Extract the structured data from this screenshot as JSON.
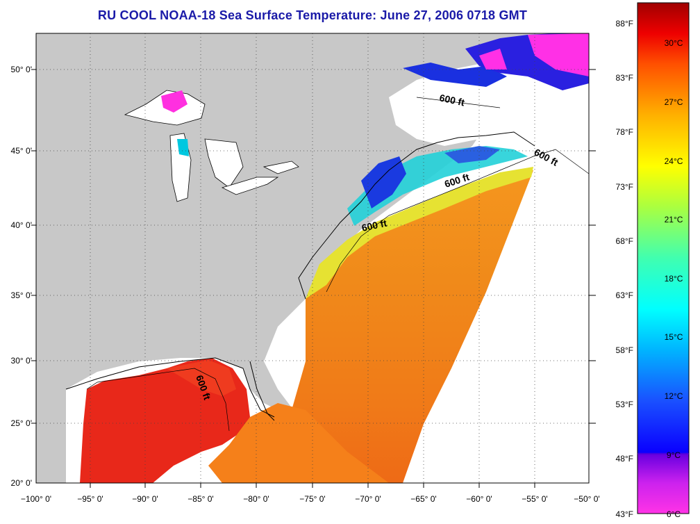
{
  "title": "RU COOL  NOAA-18  Sea Surface Temperature:  June 27, 2006 0718 GMT",
  "lon_labels": [
    "−100° 0'",
    "−95° 0'",
    "−90° 0'",
    "−85° 0'",
    "−80° 0'",
    "−75° 0'",
    "−70° 0'",
    "−65° 0'",
    "−60° 0'",
    "−55° 0'",
    "−50° 0'"
  ],
  "lat_labels": [
    "20° 0'",
    "25° 0'",
    "30° 0'",
    "35° 0'",
    "40° 0'",
    "45° 0'",
    "50° 0'"
  ],
  "depth_labels": [
    "600 ft",
    "600 ft",
    "600 ft",
    "600 ft",
    "600 ft"
  ],
  "colorbar": {
    "fahrenheit": [
      "88°F",
      "83°F",
      "78°F",
      "73°F",
      "68°F",
      "63°F",
      "58°F",
      "53°F",
      "48°F",
      "43°F"
    ],
    "celsius": [
      "30°C",
      "27°C",
      "24°C",
      "21°C",
      "18°C",
      "15°C",
      "12°C",
      "9°C",
      "6°C"
    ]
  },
  "colors": {
    "land": "#c8c8c8",
    "no_data": "#ffffff",
    "title": "#1a1aa8",
    "warm": "#e8281a",
    "orange": "#f5961e",
    "yellow": "#e6e61e",
    "cyan": "#00e6e6",
    "blue": "#1a1ae6",
    "magenta": "#ff28e6"
  }
}
